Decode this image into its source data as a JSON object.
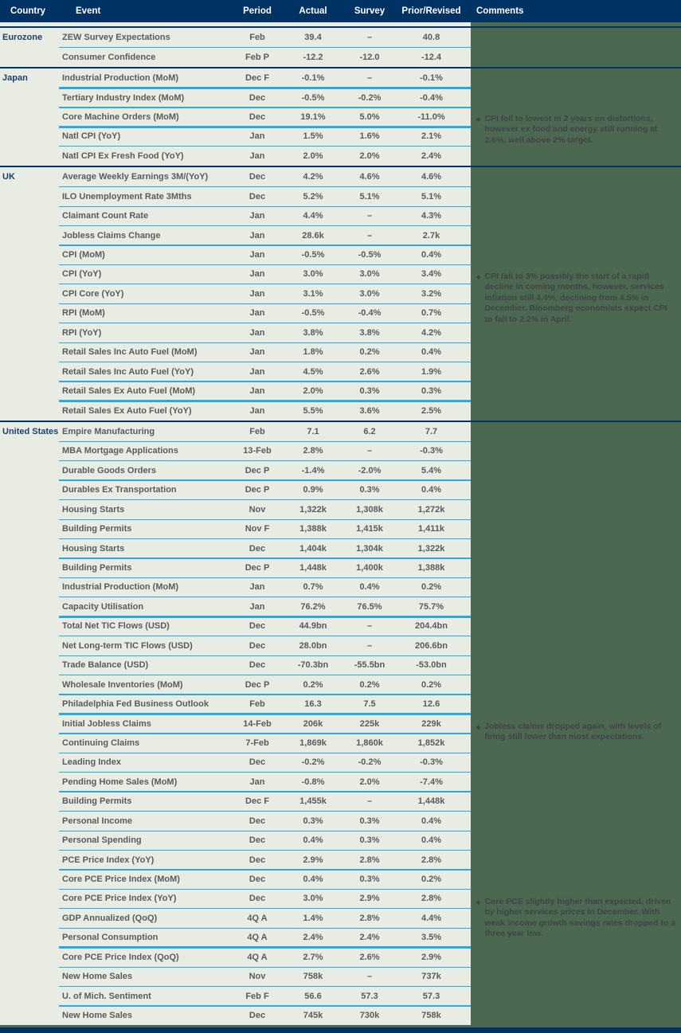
{
  "header": {
    "columns": [
      "Country",
      "Event",
      "Period",
      "Actual",
      "Survey",
      "Prior/Revised",
      "Comments"
    ]
  },
  "colors": {
    "header_navy": "#003263",
    "group_separator_navy": "#00356b",
    "row_separator_cyan": "#29a9e2",
    "page_background_green": "#4d6850",
    "row_background": "#e9ece3",
    "country_text_navy": "#1a4070",
    "table_text_gray": "#5a5b5d",
    "comment_text": "#3f4446"
  },
  "groups": [
    {
      "country": "Eurozone",
      "rows": [
        {
          "event": "ZEW Survey Expectations",
          "period": "Feb",
          "actual": "39.4",
          "survey": "–",
          "prior": "40.8",
          "thick": false
        },
        {
          "event": "Consumer Confidence",
          "period": "Feb P",
          "actual": "-12.2",
          "survey": "-12.0",
          "prior": "-12.4",
          "thick": false
        }
      ]
    },
    {
      "country": "Japan",
      "rows": [
        {
          "event": "Industrial Production (MoM)",
          "period": "Dec F",
          "actual": "-0.1%",
          "survey": "–",
          "prior": "-0.1%",
          "thick": true
        },
        {
          "event": "Tertiary Industry Index (MoM)",
          "period": "Dec",
          "actual": "-0.5%",
          "survey": "-0.2%",
          "prior": "-0.4%",
          "thick": false
        },
        {
          "event": "Core Machine Orders (MoM)",
          "period": "Dec",
          "actual": "19.1%",
          "survey": "5.0%",
          "prior": "-11.0%",
          "thick": true
        },
        {
          "event": "Natl CPI (YoY)",
          "period": "Jan",
          "actual": "1.5%",
          "survey": "1.6%",
          "prior": "2.1%",
          "thick": false
        },
        {
          "event": "Natl CPI Ex Fresh Food (YoY)",
          "period": "Jan",
          "actual": "2.0%",
          "survey": "2.0%",
          "prior": "2.4%",
          "thick": false
        }
      ]
    },
    {
      "country": "UK",
      "rows": [
        {
          "event": "Average Weekly Earnings 3M/(YoY)",
          "period": "Dec",
          "actual": "4.2%",
          "survey": "4.6%",
          "prior": "4.6%",
          "thick": false
        },
        {
          "event": "ILO Unemployment Rate 3Mths",
          "period": "Dec",
          "actual": "5.2%",
          "survey": "5.1%",
          "prior": "5.1%",
          "thick": false
        },
        {
          "event": "Claimant Count Rate",
          "period": "Jan",
          "actual": "4.4%",
          "survey": "–",
          "prior": "4.3%",
          "thick": false
        },
        {
          "event": "Jobless Claims Change",
          "period": "Jan",
          "actual": "28.6k",
          "survey": "–",
          "prior": "2.7k",
          "thick": true
        },
        {
          "event": "CPI (MoM)",
          "period": "Jan",
          "actual": "-0.5%",
          "survey": "-0.5%",
          "prior": "0.4%",
          "thick": false
        },
        {
          "event": "CPI (YoY)",
          "period": "Jan",
          "actual": "3.0%",
          "survey": "3.0%",
          "prior": "3.4%",
          "thick": false
        },
        {
          "event": "CPI Core (YoY)",
          "period": "Jan",
          "actual": "3.1%",
          "survey": "3.0%",
          "prior": "3.2%",
          "thick": false
        },
        {
          "event": "RPI (MoM)",
          "period": "Jan",
          "actual": "-0.5%",
          "survey": "-0.4%",
          "prior": "0.7%",
          "thick": false
        },
        {
          "event": "RPI (YoY)",
          "period": "Jan",
          "actual": "3.8%",
          "survey": "3.8%",
          "prior": "4.2%",
          "thick": false
        },
        {
          "event": "Retail Sales Inc Auto Fuel (MoM)",
          "period": "Jan",
          "actual": "1.8%",
          "survey": "0.2%",
          "prior": "0.4%",
          "thick": false
        },
        {
          "event": "Retail Sales Inc Auto Fuel (YoY)",
          "period": "Jan",
          "actual": "4.5%",
          "survey": "2.6%",
          "prior": "1.9%",
          "thick": false
        },
        {
          "event": "Retail Sales Ex Auto Fuel (MoM)",
          "period": "Jan",
          "actual": "2.0%",
          "survey": "0.3%",
          "prior": "0.3%",
          "thick": true
        },
        {
          "event": "Retail Sales Ex Auto Fuel (YoY)",
          "period": "Jan",
          "actual": "5.5%",
          "survey": "3.6%",
          "prior": "2.5%",
          "thick": false
        }
      ]
    },
    {
      "country": "United States",
      "rows": [
        {
          "event": "Empire Manufacturing",
          "period": "Feb",
          "actual": "7.1",
          "survey": "6.2",
          "prior": "7.7",
          "thick": false
        },
        {
          "event": "MBA Mortgage Applications",
          "period": "13-Feb",
          "actual": "2.8%",
          "survey": "–",
          "prior": "-0.3%",
          "thick": false
        },
        {
          "event": "Durable Goods Orders",
          "period": "Dec P",
          "actual": "-1.4%",
          "survey": "-2.0%",
          "prior": "5.4%",
          "thick": true
        },
        {
          "event": "Durables Ex Transportation",
          "period": "Dec P",
          "actual": "0.9%",
          "survey": "0.3%",
          "prior": "0.4%",
          "thick": false
        },
        {
          "event": "Housing Starts",
          "period": "Nov",
          "actual": "1,322k",
          "survey": "1,308k",
          "prior": "1,272k",
          "thick": false
        },
        {
          "event": "Building Permits",
          "period": "Nov F",
          "actual": "1,388k",
          "survey": "1,415k",
          "prior": "1,411k",
          "thick": false
        },
        {
          "event": "Housing Starts",
          "period": "Dec",
          "actual": "1,404k",
          "survey": "1,304k",
          "prior": "1,322k",
          "thick": false
        },
        {
          "event": "Building Permits",
          "period": "Dec P",
          "actual": "1,448k",
          "survey": "1,400k",
          "prior": "1,388k",
          "thick": false
        },
        {
          "event": "Industrial Production (MoM)",
          "period": "Jan",
          "actual": "0.7%",
          "survey": "0.4%",
          "prior": "0.2%",
          "thick": false
        },
        {
          "event": "Capacity Utilisation",
          "period": "Jan",
          "actual": "76.2%",
          "survey": "76.5%",
          "prior": "75.7%",
          "thick": true
        },
        {
          "event": "Total Net TIC Flows (USD)",
          "period": "Dec",
          "actual": "44.9bn",
          "survey": "–",
          "prior": "204.4bn",
          "thick": false
        },
        {
          "event": "Net Long-term TIC Flows (USD)",
          "period": "Dec",
          "actual": "28.0bn",
          "survey": "–",
          "prior": "206.6bn",
          "thick": false
        },
        {
          "event": "Trade Balance (USD)",
          "period": "Dec",
          "actual": "-70.3bn",
          "survey": "-55.5bn",
          "prior": "-53.0bn",
          "thick": false
        },
        {
          "event": "Wholesale Inventories (MoM)",
          "period": "Dec P",
          "actual": "0.2%",
          "survey": "0.2%",
          "prior": "0.2%",
          "thick": false
        },
        {
          "event": "Philadelphia Fed Business Outlook",
          "period": "Feb",
          "actual": "16.3",
          "survey": "7.5",
          "prior": "12.6",
          "thick": true
        },
        {
          "event": "Initial Jobless Claims",
          "period": "14-Feb",
          "actual": "206k",
          "survey": "225k",
          "prior": "229k",
          "thick": false
        },
        {
          "event": "Continuing Claims",
          "period": "7-Feb",
          "actual": "1,869k",
          "survey": "1,860k",
          "prior": "1,852k",
          "thick": false
        },
        {
          "event": "Leading Index",
          "period": "Dec",
          "actual": "-0.2%",
          "survey": "-0.2%",
          "prior": "-0.3%",
          "thick": false
        },
        {
          "event": "Pending Home Sales (MoM)",
          "period": "Jan",
          "actual": "-0.8%",
          "survey": "2.0%",
          "prior": "-7.4%",
          "thick": true
        },
        {
          "event": "Building Permits",
          "period": "Dec F",
          "actual": "1,455k",
          "survey": "–",
          "prior": "1,448k",
          "thick": false
        },
        {
          "event": "Personal Income",
          "period": "Dec",
          "actual": "0.3%",
          "survey": "0.3%",
          "prior": "0.4%",
          "thick": false
        },
        {
          "event": "Personal Spending",
          "period": "Dec",
          "actual": "0.4%",
          "survey": "0.3%",
          "prior": "0.4%",
          "thick": false
        },
        {
          "event": "PCE Price Index (YoY)",
          "period": "Dec",
          "actual": "2.9%",
          "survey": "2.8%",
          "prior": "2.8%",
          "thick": true
        },
        {
          "event": "Core PCE Price Index (MoM)",
          "period": "Dec",
          "actual": "0.4%",
          "survey": "0.3%",
          "prior": "0.2%",
          "thick": false
        },
        {
          "event": "Core PCE Price Index (YoY)",
          "period": "Dec",
          "actual": "3.0%",
          "survey": "2.9%",
          "prior": "2.8%",
          "thick": false
        },
        {
          "event": "GDP Annualized (QoQ)",
          "period": "4Q A",
          "actual": "1.4%",
          "survey": "2.8%",
          "prior": "4.4%",
          "thick": false
        },
        {
          "event": "Personal Consumption",
          "period": "4Q A",
          "actual": "2.4%",
          "survey": "2.4%",
          "prior": "3.5%",
          "thick": true
        },
        {
          "event": "Core PCE Price Index (QoQ)",
          "period": "4Q A",
          "actual": "2.7%",
          "survey": "2.6%",
          "prior": "2.9%",
          "thick": false
        },
        {
          "event": "New Home Sales",
          "period": "Nov",
          "actual": "758k",
          "survey": "–",
          "prior": "737k",
          "thick": false
        },
        {
          "event": "U. of Mich. Sentiment",
          "period": "Feb F",
          "actual": "56.6",
          "survey": "57.3",
          "prior": "57.3",
          "thick": false
        },
        {
          "event": "New Home Sales",
          "period": "Dec",
          "actual": "745k",
          "survey": "730k",
          "prior": "758k",
          "thick": false
        }
      ]
    }
  ],
  "comments": [
    {
      "country": "Japan",
      "anchor_event": "Core Machine Orders (MoM)",
      "bullet": "◆",
      "text": "CPI fell to lowest in 2 years on distortions, however ex food and energy still running at 2.6%, well above 2% target."
    },
    {
      "country": "UK",
      "anchor_event": "CPI (YoY)",
      "bullet": "◆",
      "text": "CPI fall to 3% possibly the start of a rapid decline in coming months, however, services inflation still 4.4%, declining from 4.5% in December. Bloomberg economists expect CPI to fall to 2.2% in April."
    },
    {
      "country": "United States",
      "anchor_event": "Initial Jobless Claims",
      "bullet": "◆",
      "text": "Jobless claims dropped again, with levels of firing still lower than most expectations."
    },
    {
      "country": "United States",
      "anchor_event": "Core PCE Price Index (YoY)",
      "bullet": "◆",
      "text": "Core PCE slightly higher than expected, driven by higher services prices in December. With weak income growth savings rates dropped to a three year low."
    }
  ]
}
